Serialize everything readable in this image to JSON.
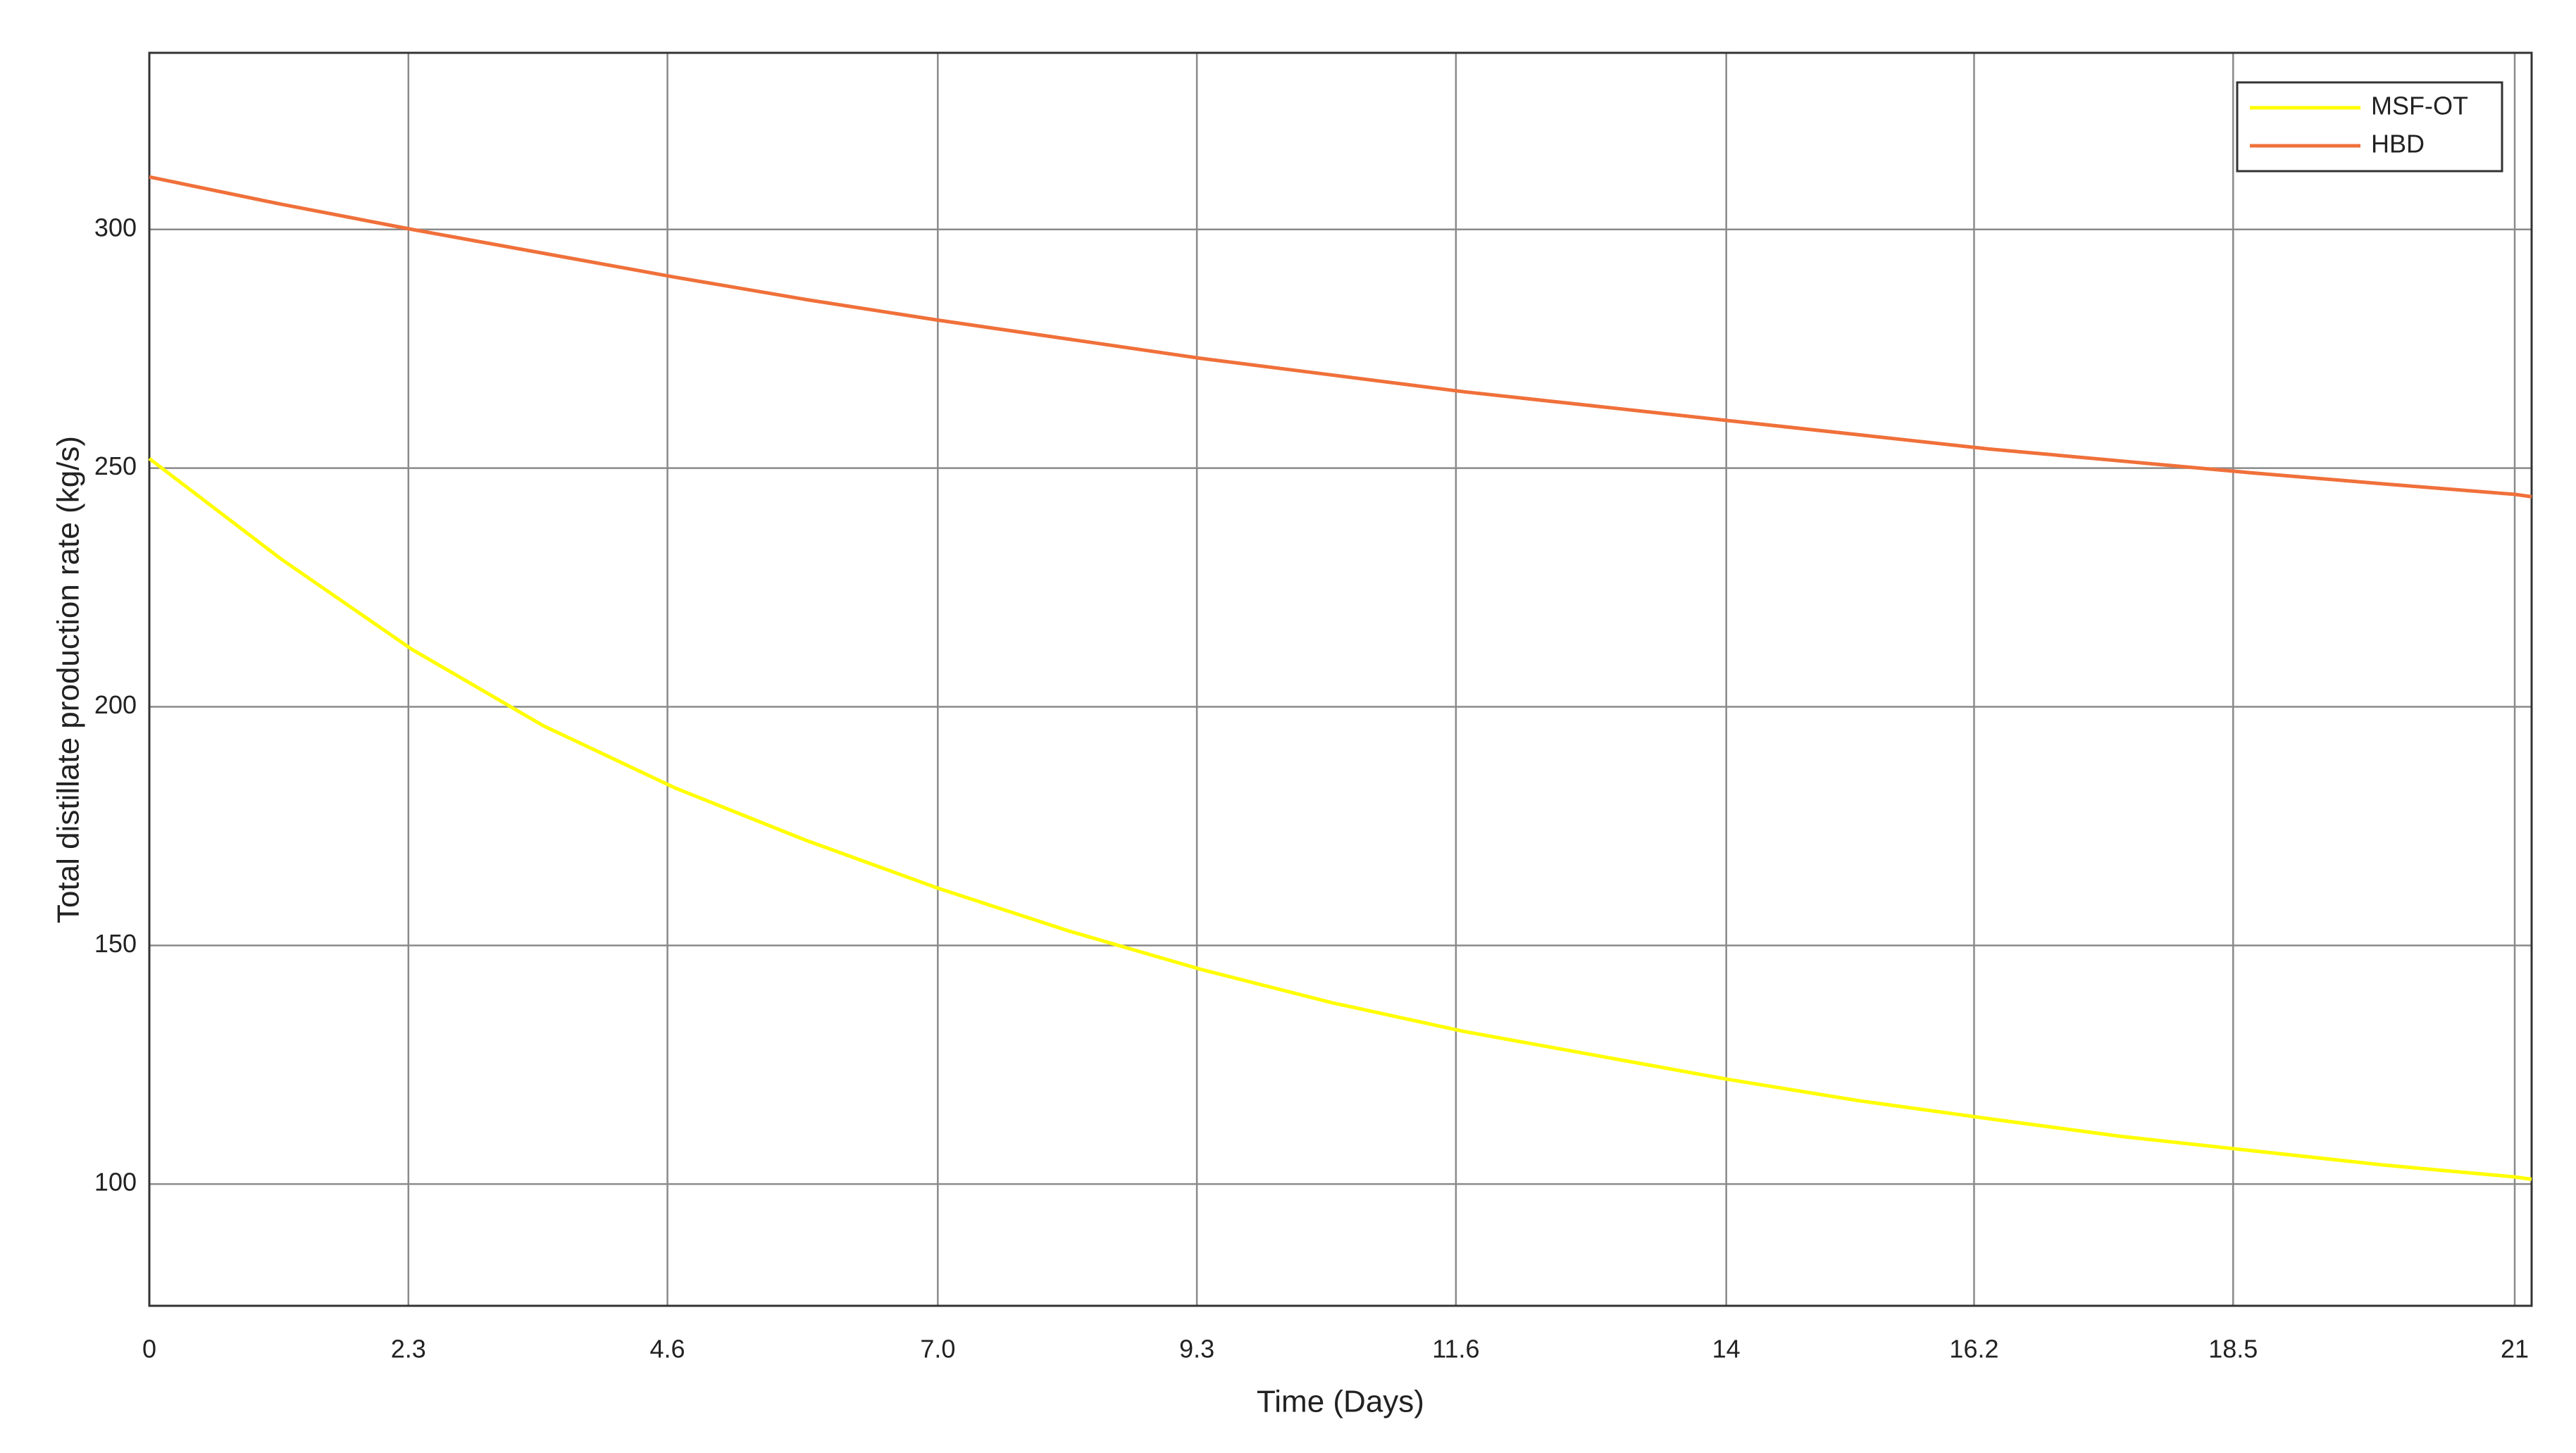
{
  "chart_data": {
    "type": "line",
    "x_label": "Time (Days)",
    "y_label": "Total distillate production rate (kg/s)",
    "x": [
      0,
      1.167,
      2.333,
      3.5,
      4.667,
      5.833,
      7,
      8.167,
      9.333,
      10.5,
      11.667,
      12.833,
      14,
      15.167,
      16.333,
      17.5,
      18.667,
      19.833,
      21,
      21.15
    ],
    "series": [
      {
        "name": "MSF-OT",
        "color": "#ffff00",
        "values": [
          252,
          231,
          212,
          196,
          183,
          172,
          162,
          153,
          145,
          138,
          132,
          127,
          122,
          117.5,
          113.7,
          110,
          107,
          104,
          101.5,
          101
        ]
      },
      {
        "name": "HBD",
        "color": "#f0703a",
        "values": [
          311,
          305.3,
          300,
          295,
          290,
          285.3,
          281,
          277,
          273,
          269.5,
          266,
          263,
          260,
          257,
          254,
          251.5,
          249,
          246.7,
          244.5,
          244
        ]
      }
    ],
    "xlim": [
      0,
      21.15
    ],
    "ylim": [
      74.5,
      337
    ],
    "xticks": [
      0,
      2.3,
      4.6,
      {
        "value": 7,
        "label": "7.0"
      },
      9.3,
      11.6,
      14,
      16.2,
      18.5,
      21
    ],
    "yticks": [
      100,
      150,
      200,
      250,
      300
    ],
    "grid": true,
    "legend": "top-right"
  }
}
